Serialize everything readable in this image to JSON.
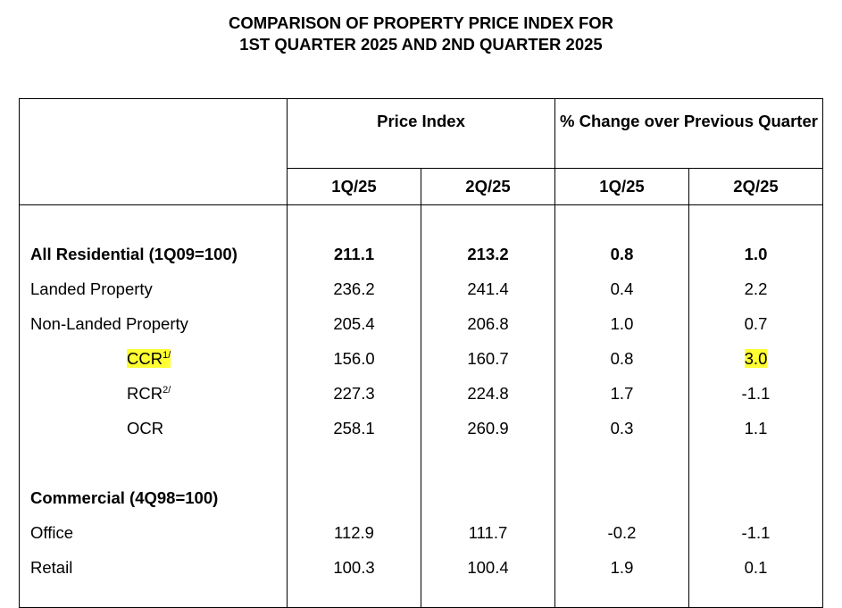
{
  "title": {
    "line1": "COMPARISON OF PROPERTY PRICE INDEX FOR",
    "line2": "1ST QUARTER 2025 AND 2ND QUARTER 2025"
  },
  "header": {
    "price_index": "Price Index",
    "pct_change": "% Change over Previous Quarter",
    "q1": "1Q/25",
    "q2": "2Q/25",
    "q1b": "1Q/25",
    "q2b": "2Q/25"
  },
  "residential": {
    "all": {
      "label": "All Residential (1Q09=100)",
      "pi_q1": "211.1",
      "pi_q2": "213.2",
      "ch_q1": "0.8",
      "ch_q2": "1.0"
    },
    "landed": {
      "label": "Landed Property",
      "pi_q1": "236.2",
      "pi_q2": "241.4",
      "ch_q1": "0.4",
      "ch_q2": "2.2"
    },
    "nonlanded": {
      "label": "Non-Landed Property",
      "pi_q1": "205.4",
      "pi_q2": "206.8",
      "ch_q1": "1.0",
      "ch_q2": "0.7"
    },
    "ccr": {
      "label": "CCR",
      "sup": "1/",
      "pi_q1": "156.0",
      "pi_q2": "160.7",
      "ch_q1": "0.8",
      "ch_q2": "3.0"
    },
    "rcr": {
      "label": "RCR",
      "sup": "2/",
      "pi_q1": "227.3",
      "pi_q2": "224.8",
      "ch_q1": "1.7",
      "ch_q2": "-1.1"
    },
    "ocr": {
      "label": "OCR",
      "pi_q1": "258.1",
      "pi_q2": "260.9",
      "ch_q1": "0.3",
      "ch_q2": "1.1"
    }
  },
  "commercial": {
    "heading": "Commercial (4Q98=100)",
    "office": {
      "label": "Office",
      "pi_q1": "112.9",
      "pi_q2": "111.7",
      "ch_q1": "-0.2",
      "ch_q2": "-1.1"
    },
    "retail": {
      "label": "Retail",
      "pi_q1": "100.3",
      "pi_q2": "100.4",
      "ch_q1": "1.9",
      "ch_q2": "0.1"
    }
  },
  "highlight_color": "#ffff33"
}
